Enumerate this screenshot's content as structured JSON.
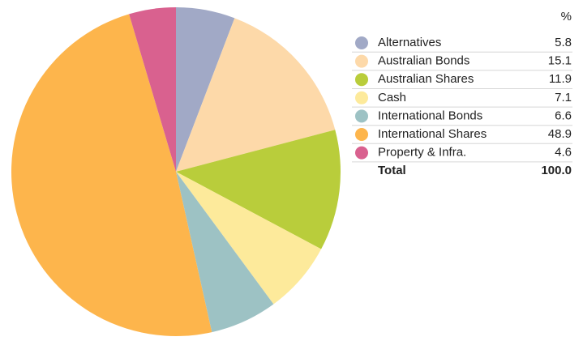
{
  "chart_data": {
    "type": "pie",
    "value_header": "%",
    "categories": [
      "Alternatives",
      "Australian Bonds",
      "Australian Shares",
      "Cash",
      "International Bonds",
      "International Shares",
      "Property & Infra."
    ],
    "values": [
      5.8,
      15.1,
      11.9,
      7.1,
      6.6,
      48.9,
      4.6
    ],
    "colors": [
      "#a1a9c6",
      "#fdd9a9",
      "#b9cd3b",
      "#fdea9b",
      "#9dc2c4",
      "#fdb54c",
      "#d9618f"
    ],
    "total": {
      "label": "Total",
      "value": 100,
      "value_label": "100.0"
    }
  }
}
